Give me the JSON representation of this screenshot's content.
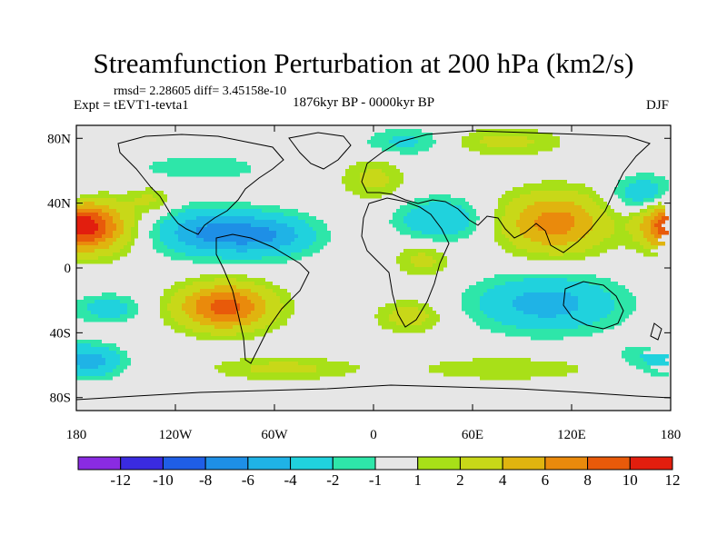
{
  "chart_data": {
    "type": "heatmap",
    "title": "Streamfunction Perturbation at 200 hPa (km2/s)",
    "stats": "rmsd= 2.28605  diff= 3.45158e-10",
    "experiment": "Expt = tEVT1-tevta1",
    "period": "1876kyr BP - 0000kyr BP",
    "season": "DJF",
    "x_range": [
      -180,
      180
    ],
    "y_range": [
      -88,
      88
    ],
    "x_ticks": [
      {
        "value": -180,
        "label": "180"
      },
      {
        "value": -120,
        "label": "120W"
      },
      {
        "value": -60,
        "label": "60W"
      },
      {
        "value": 0,
        "label": "0"
      },
      {
        "value": 60,
        "label": "60E"
      },
      {
        "value": 120,
        "label": "120E"
      },
      {
        "value": 180,
        "label": "180"
      }
    ],
    "y_ticks": [
      {
        "value": 80,
        "label": "80N"
      },
      {
        "value": 40,
        "label": "40N"
      },
      {
        "value": 0,
        "label": "0"
      },
      {
        "value": -40,
        "label": "40S"
      },
      {
        "value": -80,
        "label": "80S"
      }
    ],
    "levels": [
      -12,
      -10,
      -8,
      -6,
      -4,
      -2,
      -1,
      1,
      2,
      4,
      6,
      8,
      10,
      12
    ],
    "level_labels": [
      "-12",
      "-10",
      "-8",
      "-6",
      "-4",
      "-2",
      "-1",
      "1",
      "2",
      "4",
      "6",
      "8",
      "10",
      "12"
    ],
    "colors": [
      "#8a2be2",
      "#3a2be0",
      "#1f5ee6",
      "#1e8fe6",
      "#1fb3e6",
      "#20d2dd",
      "#2ee6a9",
      "#e6e6e6",
      "#a8e018",
      "#c8d818",
      "#e0b40f",
      "#ea8a0c",
      "#e85a0a",
      "#e21e0e"
    ],
    "anomalies": [
      {
        "lon": -170,
        "lat": 25,
        "value": 8,
        "sx": 16,
        "sy": 11
      },
      {
        "lon": 178,
        "lat": 28,
        "value": 5,
        "sx": 12,
        "sy": 10
      },
      {
        "lon": -100,
        "lat": 22,
        "value": -6,
        "sx": 22,
        "sy": 10
      },
      {
        "lon": -62,
        "lat": 20,
        "value": -5,
        "sx": 20,
        "sy": 9
      },
      {
        "lon": -90,
        "lat": -24,
        "value": 9,
        "sx": 20,
        "sy": 10
      },
      {
        "lon": -160,
        "lat": -25,
        "value": -3,
        "sx": 14,
        "sy": 6
      },
      {
        "lon": -170,
        "lat": -58,
        "value": -4,
        "sx": 13,
        "sy": 7
      },
      {
        "lon": -55,
        "lat": -62,
        "value": 2.5,
        "sx": 30,
        "sy": 5
      },
      {
        "lon": -105,
        "lat": 62,
        "value": -1.5,
        "sx": 35,
        "sy": 7
      },
      {
        "lon": -135,
        "lat": 42,
        "value": 2.2,
        "sx": 10,
        "sy": 6
      },
      {
        "lon": 20,
        "lat": 78,
        "value": -2.5,
        "sx": 18,
        "sy": 6
      },
      {
        "lon": 80,
        "lat": 78,
        "value": 2.5,
        "sx": 25,
        "sy": 6
      },
      {
        "lon": 0,
        "lat": 55,
        "value": 2.5,
        "sx": 14,
        "sy": 9
      },
      {
        "lon": 40,
        "lat": 30,
        "value": -4,
        "sx": 18,
        "sy": 9
      },
      {
        "lon": 110,
        "lat": 28,
        "value": 7,
        "sx": 22,
        "sy": 13
      },
      {
        "lon": 165,
        "lat": 45,
        "value": -4,
        "sx": 14,
        "sy": 8
      },
      {
        "lon": 30,
        "lat": 5,
        "value": 2.5,
        "sx": 12,
        "sy": 7
      },
      {
        "lon": 22,
        "lat": -30,
        "value": 3,
        "sx": 14,
        "sy": 7
      },
      {
        "lon": 105,
        "lat": -22,
        "value": -5,
        "sx": 30,
        "sy": 12
      },
      {
        "lon": 80,
        "lat": -62,
        "value": 1.7,
        "sx": 45,
        "sy": 6
      },
      {
        "lon": 170,
        "lat": -55,
        "value": -2,
        "sx": 18,
        "sy": 7
      }
    ]
  }
}
